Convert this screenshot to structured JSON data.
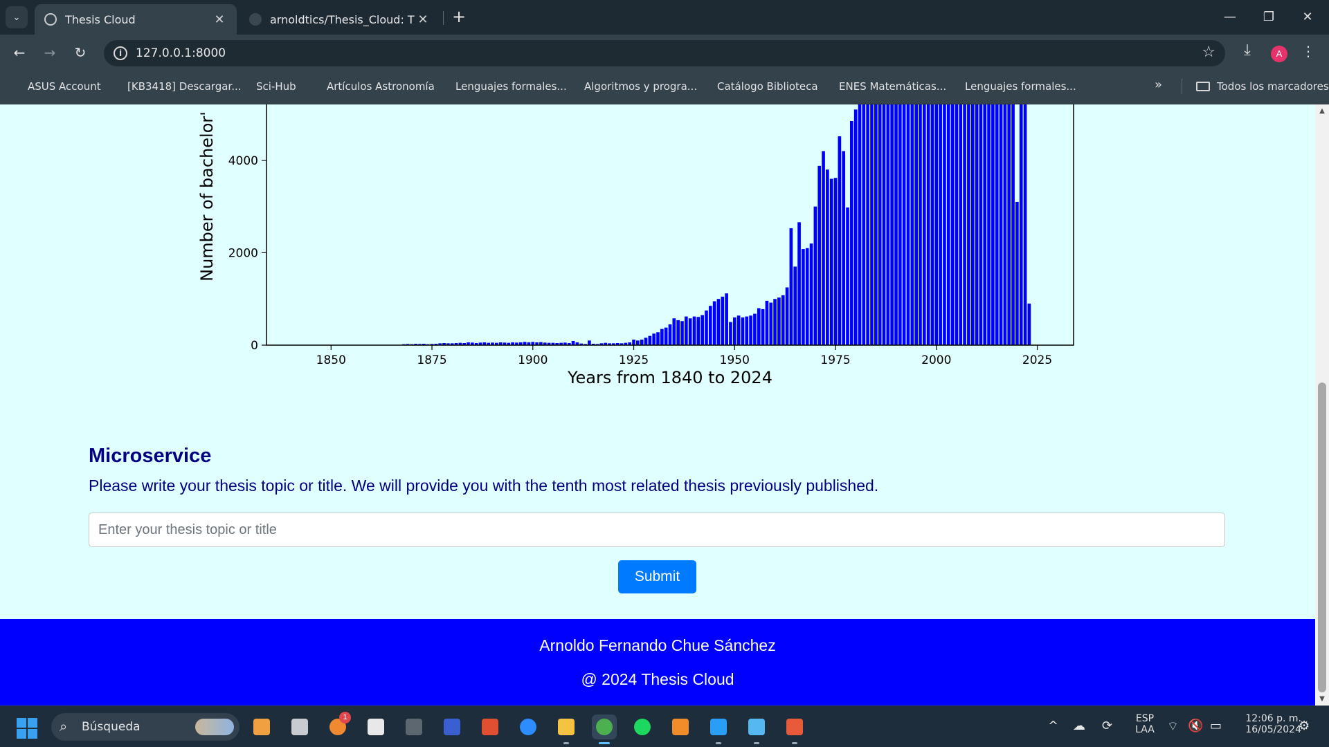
{
  "browser": {
    "tabs": [
      {
        "title": "Thesis Cloud",
        "close": "✕"
      },
      {
        "title": "arnoldtics/Thesis_Cloud: Thesis",
        "close": "✕"
      }
    ],
    "new_tab": "+",
    "tab_list": "⌄",
    "window_controls": {
      "minimize": "—",
      "restore": "❐",
      "close": "✕"
    },
    "nav": {
      "back": "←",
      "forward": "→",
      "reload": "↻"
    },
    "address": "127.0.0.1:8000",
    "address_info": "i",
    "star": "☆",
    "download": "⤓",
    "profile_initial": "A",
    "menu": "⋮",
    "bookmarks": [
      {
        "label": "ASUS Account",
        "color": "#e62117"
      },
      {
        "label": "[KB3418] Descargar...",
        "color": "#2e7d32"
      },
      {
        "label": "Sci-Hub",
        "color": "#9a1c1c"
      },
      {
        "label": "Artículos Astronomía",
        "color": "#e8e8e8"
      },
      {
        "label": "Lenguajes formales...",
        "color": "#4a68c8"
      },
      {
        "label": "Algoritmos y progra...",
        "color": "#4a68c8"
      },
      {
        "label": "Catálogo Biblioteca",
        "color": "#7aa0c8"
      },
      {
        "label": "ENES Matemáticas...",
        "color": "#2b8a73"
      },
      {
        "label": "Lenguajes formales...",
        "color": "#6a9fd8"
      }
    ],
    "bookmarks_overflow": "»",
    "all_bookmarks": "Todos los marcadores"
  },
  "chart_data": {
    "type": "bar",
    "xlabel": "Years from 1840 to 2024",
    "ylabel": "Number of bachelor'",
    "xlim": [
      1834,
      2034
    ],
    "ylim_visible": [
      0,
      5300
    ],
    "x_ticks": [
      1850,
      1875,
      1900,
      1925,
      1950,
      1975,
      2000,
      2025
    ],
    "y_ticks": [
      0,
      2000,
      4000
    ],
    "bar_color": "#0000ff",
    "note_clipped": "Bars from 1980 to 2022 extend above the visible top of the chart (clipped)",
    "bars": [
      {
        "x": 1868,
        "y": 20
      },
      {
        "x": 1869,
        "y": 25
      },
      {
        "x": 1870,
        "y": 20
      },
      {
        "x": 1871,
        "y": 30
      },
      {
        "x": 1872,
        "y": 25
      },
      {
        "x": 1873,
        "y": 30
      },
      {
        "x": 1874,
        "y": 20
      },
      {
        "x": 1875,
        "y": 25
      },
      {
        "x": 1876,
        "y": 30
      },
      {
        "x": 1877,
        "y": 40
      },
      {
        "x": 1878,
        "y": 45
      },
      {
        "x": 1879,
        "y": 40
      },
      {
        "x": 1880,
        "y": 40
      },
      {
        "x": 1881,
        "y": 45
      },
      {
        "x": 1882,
        "y": 50
      },
      {
        "x": 1883,
        "y": 45
      },
      {
        "x": 1884,
        "y": 60
      },
      {
        "x": 1885,
        "y": 55
      },
      {
        "x": 1886,
        "y": 45
      },
      {
        "x": 1887,
        "y": 55
      },
      {
        "x": 1888,
        "y": 60
      },
      {
        "x": 1889,
        "y": 50
      },
      {
        "x": 1890,
        "y": 55
      },
      {
        "x": 1891,
        "y": 50
      },
      {
        "x": 1892,
        "y": 60
      },
      {
        "x": 1893,
        "y": 55
      },
      {
        "x": 1894,
        "y": 50
      },
      {
        "x": 1895,
        "y": 60
      },
      {
        "x": 1896,
        "y": 55
      },
      {
        "x": 1897,
        "y": 60
      },
      {
        "x": 1898,
        "y": 70
      },
      {
        "x": 1899,
        "y": 60
      },
      {
        "x": 1900,
        "y": 70
      },
      {
        "x": 1901,
        "y": 60
      },
      {
        "x": 1902,
        "y": 65
      },
      {
        "x": 1903,
        "y": 55
      },
      {
        "x": 1904,
        "y": 50
      },
      {
        "x": 1905,
        "y": 50
      },
      {
        "x": 1906,
        "y": 45
      },
      {
        "x": 1907,
        "y": 50
      },
      {
        "x": 1908,
        "y": 55
      },
      {
        "x": 1909,
        "y": 45
      },
      {
        "x": 1910,
        "y": 90
      },
      {
        "x": 1911,
        "y": 60
      },
      {
        "x": 1912,
        "y": 35
      },
      {
        "x": 1913,
        "y": 25
      },
      {
        "x": 1914,
        "y": 100
      },
      {
        "x": 1915,
        "y": 30
      },
      {
        "x": 1916,
        "y": 25
      },
      {
        "x": 1917,
        "y": 40
      },
      {
        "x": 1918,
        "y": 50
      },
      {
        "x": 1919,
        "y": 40
      },
      {
        "x": 1920,
        "y": 40
      },
      {
        "x": 1921,
        "y": 45
      },
      {
        "x": 1922,
        "y": 40
      },
      {
        "x": 1923,
        "y": 50
      },
      {
        "x": 1924,
        "y": 60
      },
      {
        "x": 1925,
        "y": 120
      },
      {
        "x": 1926,
        "y": 100
      },
      {
        "x": 1927,
        "y": 120
      },
      {
        "x": 1928,
        "y": 160
      },
      {
        "x": 1929,
        "y": 200
      },
      {
        "x": 1930,
        "y": 250
      },
      {
        "x": 1931,
        "y": 280
      },
      {
        "x": 1932,
        "y": 350
      },
      {
        "x": 1933,
        "y": 380
      },
      {
        "x": 1934,
        "y": 450
      },
      {
        "x": 1935,
        "y": 580
      },
      {
        "x": 1936,
        "y": 540
      },
      {
        "x": 1937,
        "y": 520
      },
      {
        "x": 1938,
        "y": 620
      },
      {
        "x": 1939,
        "y": 580
      },
      {
        "x": 1940,
        "y": 620
      },
      {
        "x": 1941,
        "y": 610
      },
      {
        "x": 1942,
        "y": 650
      },
      {
        "x": 1943,
        "y": 750
      },
      {
        "x": 1944,
        "y": 850
      },
      {
        "x": 1945,
        "y": 950
      },
      {
        "x": 1946,
        "y": 1000
      },
      {
        "x": 1947,
        "y": 1050
      },
      {
        "x": 1948,
        "y": 1120
      },
      {
        "x": 1949,
        "y": 500
      },
      {
        "x": 1950,
        "y": 600
      },
      {
        "x": 1951,
        "y": 640
      },
      {
        "x": 1952,
        "y": 600
      },
      {
        "x": 1953,
        "y": 620
      },
      {
        "x": 1954,
        "y": 640
      },
      {
        "x": 1955,
        "y": 680
      },
      {
        "x": 1956,
        "y": 800
      },
      {
        "x": 1957,
        "y": 780
      },
      {
        "x": 1958,
        "y": 960
      },
      {
        "x": 1959,
        "y": 920
      },
      {
        "x": 1960,
        "y": 1000
      },
      {
        "x": 1961,
        "y": 1030
      },
      {
        "x": 1962,
        "y": 1080
      },
      {
        "x": 1963,
        "y": 1250
      },
      {
        "x": 1964,
        "y": 2530
      },
      {
        "x": 1965,
        "y": 1700
      },
      {
        "x": 1966,
        "y": 2660
      },
      {
        "x": 1967,
        "y": 2080
      },
      {
        "x": 1968,
        "y": 2100
      },
      {
        "x": 1969,
        "y": 2200
      },
      {
        "x": 1970,
        "y": 3000
      },
      {
        "x": 1971,
        "y": 3880
      },
      {
        "x": 1972,
        "y": 4200
      },
      {
        "x": 1973,
        "y": 3800
      },
      {
        "x": 1974,
        "y": 3600
      },
      {
        "x": 1975,
        "y": 3620
      },
      {
        "x": 1976,
        "y": 4520
      },
      {
        "x": 1977,
        "y": 4200
      },
      {
        "x": 1978,
        "y": 2980
      },
      {
        "x": 1979,
        "y": 4850
      },
      {
        "x": 1980,
        "y": 5100
      },
      {
        "x": 1981,
        "y": 5350
      },
      {
        "x": 1982,
        "y": 5350
      },
      {
        "x": 1983,
        "y": 5350
      },
      {
        "x": 1984,
        "y": 5350
      },
      {
        "x": 1985,
        "y": 5350
      },
      {
        "x": 1986,
        "y": 5350
      },
      {
        "x": 1987,
        "y": 5350
      },
      {
        "x": 1988,
        "y": 5350
      },
      {
        "x": 1989,
        "y": 5350
      },
      {
        "x": 1990,
        "y": 5350
      },
      {
        "x": 1991,
        "y": 5350
      },
      {
        "x": 1992,
        "y": 5350
      },
      {
        "x": 1993,
        "y": 5350
      },
      {
        "x": 1994,
        "y": 5350
      },
      {
        "x": 1995,
        "y": 5350
      },
      {
        "x": 1996,
        "y": 5350
      },
      {
        "x": 1997,
        "y": 5350
      },
      {
        "x": 1998,
        "y": 5350
      },
      {
        "x": 1999,
        "y": 5350
      },
      {
        "x": 2000,
        "y": 5350
      },
      {
        "x": 2001,
        "y": 5350
      },
      {
        "x": 2002,
        "y": 5350
      },
      {
        "x": 2003,
        "y": 5350
      },
      {
        "x": 2004,
        "y": 5350
      },
      {
        "x": 2005,
        "y": 5350
      },
      {
        "x": 2006,
        "y": 5350
      },
      {
        "x": 2007,
        "y": 5350
      },
      {
        "x": 2008,
        "y": 5350
      },
      {
        "x": 2009,
        "y": 5350
      },
      {
        "x": 2010,
        "y": 5350
      },
      {
        "x": 2011,
        "y": 5350
      },
      {
        "x": 2012,
        "y": 5350
      },
      {
        "x": 2013,
        "y": 5350
      },
      {
        "x": 2014,
        "y": 5350
      },
      {
        "x": 2015,
        "y": 5350
      },
      {
        "x": 2016,
        "y": 5350
      },
      {
        "x": 2017,
        "y": 5350
      },
      {
        "x": 2018,
        "y": 5350
      },
      {
        "x": 2019,
        "y": 5350
      },
      {
        "x": 2020,
        "y": 3100
      },
      {
        "x": 2021,
        "y": 5350
      },
      {
        "x": 2022,
        "y": 5350
      },
      {
        "x": 2023,
        "y": 900
      }
    ]
  },
  "microservice": {
    "title": "Microservice",
    "description": "Please write your thesis topic or title. We will provide you with the tenth most related thesis previously published.",
    "input_placeholder": "Enter your thesis topic or title",
    "submit_label": "Submit"
  },
  "footer": {
    "author": "Arnoldo Fernando Chue Sánchez",
    "copyright": "@ 2024 Thesis Cloud"
  },
  "scrollbar": {
    "up": "▲",
    "down": "▼"
  },
  "taskbar": {
    "search_label": "Búsqueda",
    "search_icon": "⌕",
    "apps": [
      {
        "name": "copilot-app",
        "color": "#f0a040"
      },
      {
        "name": "file-explorer-window-app",
        "color": "#c8ccd0"
      },
      {
        "name": "notification-app",
        "color": "#f08a30",
        "badge": "1"
      },
      {
        "name": "store-app",
        "color": "#e8e8e8"
      },
      {
        "name": "gear-shield-app",
        "color": "#5c6770"
      },
      {
        "name": "math-app",
        "color": "#3a5fd0"
      },
      {
        "name": "ccleaner-app",
        "color": "#e05030"
      },
      {
        "name": "zoom-app",
        "color": "#2d8cff"
      },
      {
        "name": "folder-app",
        "color": "#f5c342"
      },
      {
        "name": "chrome-app",
        "color": "#4caf50"
      },
      {
        "name": "spotify-app",
        "color": "#1ed760"
      },
      {
        "name": "sublime-app",
        "color": "#f08c2a"
      },
      {
        "name": "vscode-app",
        "color": "#2a9df4"
      },
      {
        "name": "notepad-app",
        "color": "#55b8f0"
      },
      {
        "name": "git-app",
        "color": "#e85a3a"
      }
    ],
    "tray": {
      "overflow": "^",
      "cloud": "☁",
      "sync": "⟳",
      "language_top": "ESP",
      "language_bottom": "LAA",
      "wifi": "⌔",
      "volume": "🔇",
      "battery": "▭",
      "time": "12:06 p. m.",
      "date": "16/05/2024",
      "notification": "⚙"
    }
  }
}
